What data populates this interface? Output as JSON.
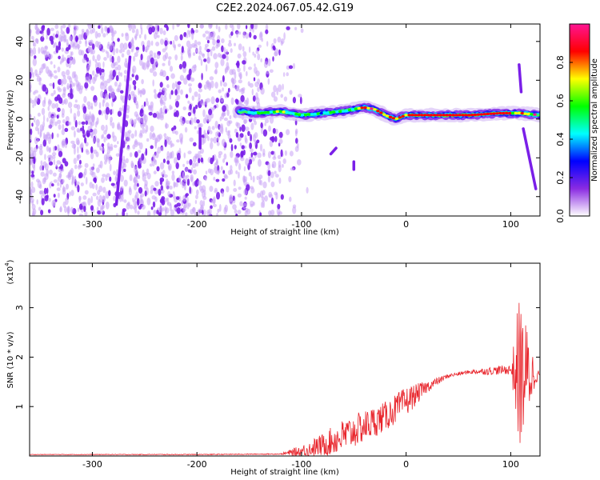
{
  "title": "C2E2.2024.067.05.42.G19",
  "colors": {
    "snr_line": "#e8232a",
    "foreground": "#000000",
    "background": "#ffffff"
  },
  "chart_data": [
    {
      "type": "heatmap",
      "xlabel": "Height of straight line (km)",
      "ylabel": "Frequency (Hz)",
      "xlim": [
        -360,
        128
      ],
      "ylim": [
        -50,
        49
      ],
      "xticks": [
        -300,
        -200,
        -100,
        0,
        100
      ],
      "xtick_labels": [
        "-300",
        "-200",
        "-100",
        "0",
        "100"
      ],
      "yticks": [
        -40,
        -20,
        0,
        20,
        40
      ],
      "ytick_labels": [
        "-40",
        "-20",
        "0",
        "20",
        "40"
      ],
      "colorbar": {
        "label": "Normalized spectral amplitude",
        "range": [
          0,
          1
        ],
        "ticks": [
          0.0,
          0.2,
          0.4,
          0.6,
          0.8
        ],
        "tick_labels": [
          "0.0",
          "0.2",
          "0.4",
          "0.6",
          "0.8"
        ],
        "colormap": [
          "#ffffff",
          "#8a2be2",
          "#0000ff",
          "#00ffff",
          "#00ff00",
          "#ffff00",
          "#ff0000",
          "#ff1493"
        ]
      },
      "features": {
        "noise_region_x": [
          -360,
          -110
        ],
        "main_ridge": [
          {
            "x": -160,
            "f": 4
          },
          {
            "x": -140,
            "f": 3
          },
          {
            "x": -120,
            "f": 4
          },
          {
            "x": -100,
            "f": 2
          },
          {
            "x": -80,
            "f": 3
          },
          {
            "x": -60,
            "f": 4
          },
          {
            "x": -40,
            "f": 6
          },
          {
            "x": -30,
            "f": 5
          },
          {
            "x": -20,
            "f": 2
          },
          {
            "x": -10,
            "f": 0
          },
          {
            "x": 0,
            "f": 2
          },
          {
            "x": 20,
            "f": 2
          },
          {
            "x": 60,
            "f": 2
          },
          {
            "x": 90,
            "f": 3
          },
          {
            "x": 110,
            "f": 3
          },
          {
            "x": 128,
            "f": 2
          }
        ],
        "streaks": [
          {
            "from": [
              -277,
              -44
            ],
            "to": [
              -264,
              32
            ]
          },
          {
            "from": [
              -197,
              -15
            ],
            "to": [
              -197,
              -5
            ]
          },
          {
            "from": [
              -72,
              -18
            ],
            "to": [
              -67,
              -15
            ]
          },
          {
            "from": [
              -50,
              -22
            ],
            "to": [
              -50,
              -26
            ]
          },
          {
            "from": [
              108,
              28
            ],
            "to": [
              110,
              14
            ]
          },
          {
            "from": [
              112,
              -5
            ],
            "to": [
              124,
              -36
            ]
          }
        ]
      }
    },
    {
      "type": "line",
      "xlabel": "Height of straight line (km)",
      "ylabel": "SNR (10 * v/v)",
      "y_multiplier_label": "(x10",
      "y_multiplier_exponent": "4",
      "xlim": [
        -360,
        128
      ],
      "ylim": [
        0,
        3.9
      ],
      "xticks": [
        -300,
        -200,
        -100,
        0,
        100
      ],
      "xtick_labels": [
        "-300",
        "-200",
        "-100",
        "0",
        "100"
      ],
      "yticks": [
        1,
        2,
        3
      ],
      "ytick_labels": [
        "1",
        "2",
        "3"
      ],
      "envelope": [
        {
          "x": -360,
          "y": 0.03
        },
        {
          "x": -200,
          "y": 0.03
        },
        {
          "x": -120,
          "y": 0.04
        },
        {
          "x": -100,
          "y": 0.1
        },
        {
          "x": -80,
          "y": 0.22
        },
        {
          "x": -60,
          "y": 0.4
        },
        {
          "x": -40,
          "y": 0.6
        },
        {
          "x": -20,
          "y": 0.8
        },
        {
          "x": 0,
          "y": 1.1
        },
        {
          "x": 20,
          "y": 1.4
        },
        {
          "x": 40,
          "y": 1.62
        },
        {
          "x": 60,
          "y": 1.7
        },
        {
          "x": 80,
          "y": 1.72
        },
        {
          "x": 100,
          "y": 1.75
        },
        {
          "x": 110,
          "y": 1.65
        },
        {
          "x": 120,
          "y": 1.65
        },
        {
          "x": 128,
          "y": 1.65
        }
      ],
      "noise_amplitude": [
        {
          "x": -360,
          "a": 0.005
        },
        {
          "x": -120,
          "a": 0.01
        },
        {
          "x": -100,
          "a": 0.12
        },
        {
          "x": -60,
          "a": 0.35
        },
        {
          "x": -20,
          "a": 0.3
        },
        {
          "x": 0,
          "a": 0.3
        },
        {
          "x": 20,
          "a": 0.12
        },
        {
          "x": 40,
          "a": 0.04
        },
        {
          "x": 60,
          "a": 0.04
        },
        {
          "x": 80,
          "a": 0.08
        },
        {
          "x": 100,
          "a": 0.1
        },
        {
          "x": 102,
          "a": 0.4
        },
        {
          "x": 108,
          "a": 1.6
        },
        {
          "x": 118,
          "a": 0.8
        },
        {
          "x": 124,
          "a": 0.2
        },
        {
          "x": 128,
          "a": 0.02
        }
      ]
    }
  ]
}
